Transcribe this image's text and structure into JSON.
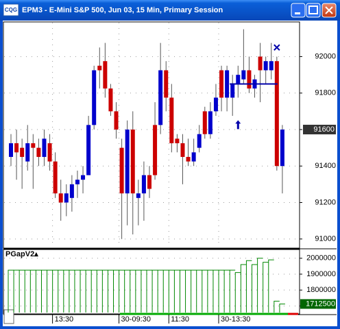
{
  "window": {
    "title": "EPM3 - E-Mini S&P 500, Jun 03, 15 Min, Primary Session",
    "icon": "CQG"
  },
  "chart_data": [
    {
      "type": "candlestick",
      "up_color": "#0000cc",
      "down_color": "#cc0000",
      "annotation_color": "#0000aa",
      "open": [
        91450,
        91525,
        91500,
        91425,
        91525,
        91500,
        91450,
        91525,
        91425,
        91250,
        91200,
        91225,
        91300,
        91325,
        91350,
        91625,
        91950,
        91975,
        91825,
        91700,
        91500,
        91250,
        91600,
        91225,
        91250,
        91350,
        91625,
        91625,
        91925,
        91775,
        91550,
        91525,
        91450,
        91425,
        91500,
        91700,
        91575,
        91700,
        91925,
        91775,
        91775,
        91850,
        91875,
        91925,
        91825,
        92000,
        91925,
        91925,
        91975,
        91400
      ],
      "high": [
        91575,
        91600,
        91550,
        91625,
        91575,
        91550,
        91600,
        91575,
        91475,
        91325,
        91300,
        91350,
        91375,
        91400,
        91675,
        91950,
        92050,
        92075,
        91850,
        91750,
        91550,
        91650,
        91700,
        91325,
        91425,
        91400,
        91750,
        92075,
        91975,
        91850,
        91575,
        91575,
        91550,
        91550,
        91625,
        91725,
        91750,
        91850,
        91950,
        91950,
        91900,
        91950,
        92150,
        92000,
        91900,
        92075,
        92000,
        92075,
        92000,
        91625
      ],
      "low": [
        91400,
        91325,
        91275,
        91375,
        91275,
        91400,
        91400,
        91375,
        91225,
        91100,
        91125,
        91150,
        91225,
        91250,
        91350,
        91600,
        91825,
        91775,
        91675,
        91550,
        91000,
        91075,
        91025,
        91075,
        91100,
        91225,
        91325,
        91575,
        91700,
        91475,
        91475,
        91300,
        91400,
        91400,
        91475,
        91550,
        91550,
        91675,
        91700,
        91700,
        91675,
        91775,
        91850,
        91800,
        91775,
        91750,
        91850,
        91875,
        91375,
        91250
      ],
      "close": [
        91525,
        91475,
        91450,
        91525,
        91500,
        91450,
        91550,
        91425,
        91250,
        91200,
        91250,
        91300,
        91325,
        91350,
        91625,
        91925,
        91925,
        91825,
        91700,
        91600,
        91250,
        91600,
        91250,
        91250,
        91350,
        91275,
        91350,
        91925,
        91775,
        91525,
        91525,
        91450,
        91425,
        91475,
        91575,
        91575,
        91700,
        91775,
        91775,
        91925,
        91850,
        91900,
        91925,
        91825,
        91875,
        91925,
        91975,
        91975,
        91400,
        91600
      ],
      "ylim": [
        90950,
        92190
      ],
      "yticks": [
        91000,
        91200,
        91400,
        91600,
        91800,
        92000
      ],
      "xticks": [
        {
          "value": 8,
          "label": "13:30"
        },
        {
          "value": 20,
          "label": "30-09:30"
        },
        {
          "value": 29,
          "label": "11:30"
        },
        {
          "value": 38,
          "label": "30-13:30"
        }
      ],
      "level": {
        "value": 91850,
        "from": 40,
        "to": 48
      },
      "markers": [
        {
          "kind": "arrow-up",
          "index": 41,
          "value": 91625
        },
        {
          "kind": "cross",
          "index": 48,
          "value": 92050
        }
      ],
      "grid": true
    },
    {
      "type": "step",
      "title": "PGapV2▴",
      "color": "#008800",
      "values": [
        1925000,
        1925000,
        1925000,
        1925000,
        1925000,
        1925000,
        1925000,
        1925000,
        1925000,
        1925000,
        1925000,
        1925000,
        1925000,
        1925000,
        1925000,
        1925000,
        1925000,
        1925000,
        1925000,
        1925000,
        1925000,
        1925000,
        1925000,
        1925000,
        1925000,
        1925000,
        1925000,
        1925000,
        1925000,
        1925000,
        1925000,
        1925000,
        1925000,
        1925000,
        1925000,
        1925000,
        1925000,
        1925000,
        1925000,
        1925000,
        1925000,
        1910000,
        1960000,
        1985000,
        1960000,
        2000000,
        1975000,
        1990000,
        1730000,
        1712500
      ],
      "ylim": [
        1650000,
        2055000
      ],
      "yticks": [
        1700000,
        1800000,
        1900000,
        2000000
      ],
      "grid": true
    }
  ]
}
